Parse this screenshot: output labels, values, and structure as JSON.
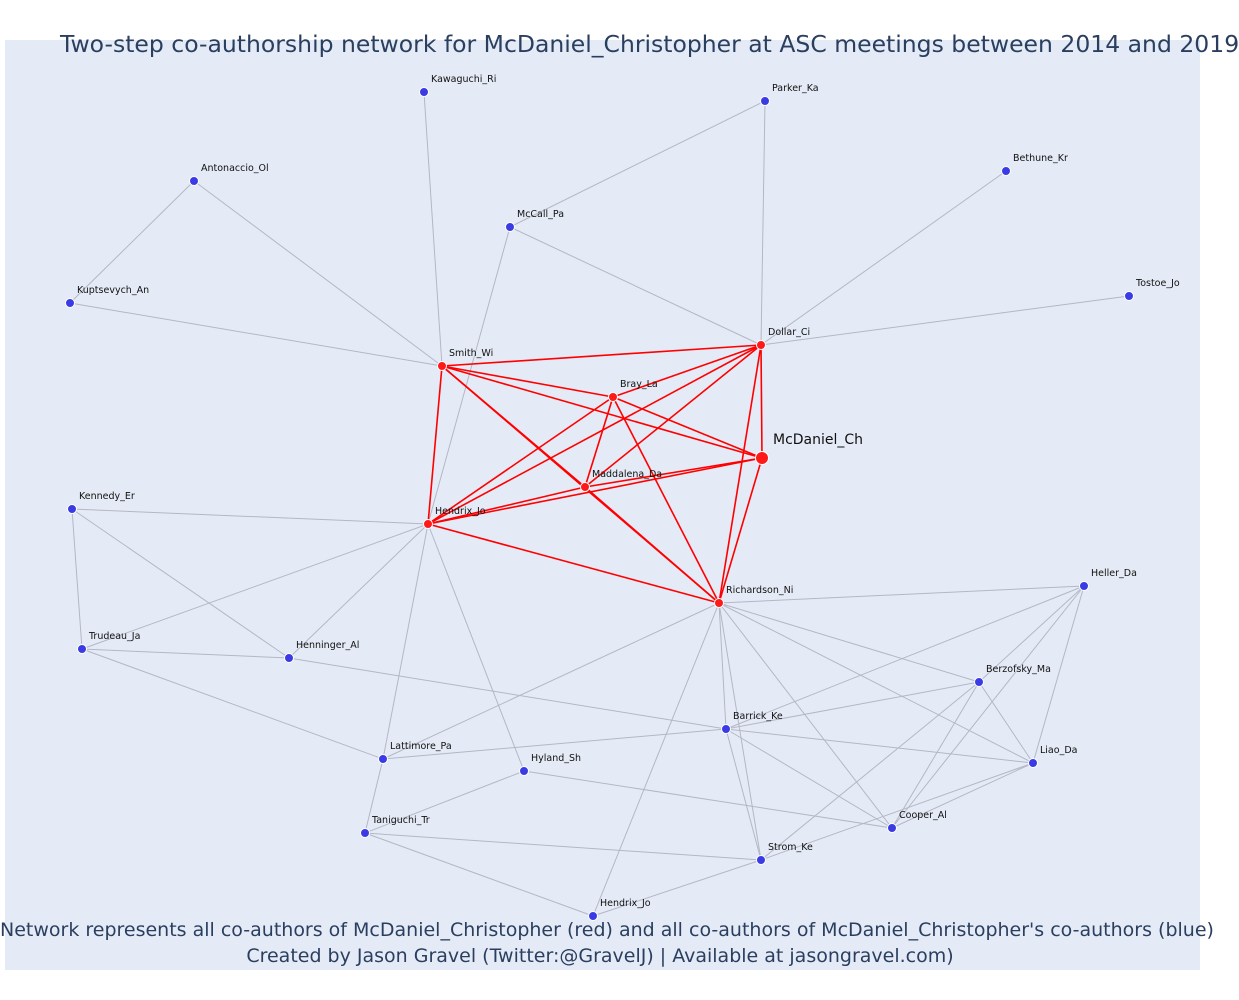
{
  "title": "Two-step co-authorship network for McDaniel_Christopher at ASC meetings between 2014 and 2019",
  "footer": {
    "line1": "Network represents all co-authors of McDaniel_Christopher (red) and all co-authors of McDaniel_Christopher's co-authors (blue)",
    "line2": "Created by Jason Gravel (Twitter:@GravelJ) | Available at jasongravel.com)"
  },
  "colors": {
    "background": "#e5ebf6",
    "coauthor": "#ff0000",
    "second_degree": "#3b3be6",
    "edge_gray": "#b4b7c6",
    "text": "#2a3f5f"
  },
  "nodes": [
    {
      "id": "mcdaniel",
      "label": "McDaniel_Ch",
      "group": "focus"
    },
    {
      "id": "smith",
      "label": "Smith_Wi",
      "group": "coauthor"
    },
    {
      "id": "dollar",
      "label": "Dollar_Ci",
      "group": "coauthor"
    },
    {
      "id": "bray",
      "label": "Bray_La",
      "group": "coauthor"
    },
    {
      "id": "maddalena",
      "label": "Maddalena_Da",
      "group": "coauthor"
    },
    {
      "id": "hendrixjo",
      "label": "Hendrix_Jo",
      "group": "coauthor"
    },
    {
      "id": "richardson",
      "label": "Richardson_Ni",
      "group": "coauthor"
    },
    {
      "id": "kawaguchi",
      "label": "Kawaguchi_Ri",
      "group": "second"
    },
    {
      "id": "parker",
      "label": "Parker_Ka",
      "group": "second"
    },
    {
      "id": "bethune",
      "label": "Bethune_Kr",
      "group": "second"
    },
    {
      "id": "antonaccio",
      "label": "Antonaccio_Ol",
      "group": "second"
    },
    {
      "id": "mccall",
      "label": "McCall_Pa",
      "group": "second"
    },
    {
      "id": "kuptsevych",
      "label": "Kuptsevych_An",
      "group": "second"
    },
    {
      "id": "tostoe",
      "label": "Tostoe_Jo",
      "group": "second"
    },
    {
      "id": "kennedy",
      "label": "Kennedy_Er",
      "group": "second"
    },
    {
      "id": "trudeau",
      "label": "Trudeau_Ja",
      "group": "second"
    },
    {
      "id": "henninger",
      "label": "Henninger_Al",
      "group": "second"
    },
    {
      "id": "heller",
      "label": "Heller_Da",
      "group": "second"
    },
    {
      "id": "berzofsky",
      "label": "Berzofsky_Ma",
      "group": "second"
    },
    {
      "id": "barrick",
      "label": "Barrick_Ke",
      "group": "second"
    },
    {
      "id": "lattimore",
      "label": "Lattimore_Pa",
      "group": "second"
    },
    {
      "id": "hyland",
      "label": "Hyland_Sh",
      "group": "second"
    },
    {
      "id": "liao",
      "label": "Liao_Da",
      "group": "second"
    },
    {
      "id": "taniguchi",
      "label": "Taniguchi_Tr",
      "group": "second"
    },
    {
      "id": "cooper",
      "label": "Cooper_Al",
      "group": "second"
    },
    {
      "id": "strom",
      "label": "Strom_Ke",
      "group": "second"
    },
    {
      "id": "hendrixjo2",
      "label": "Hendrix_Jo",
      "group": "second"
    }
  ],
  "edges": [
    [
      "mcdaniel",
      "smith"
    ],
    [
      "mcdaniel",
      "dollar"
    ],
    [
      "mcdaniel",
      "bray"
    ],
    [
      "mcdaniel",
      "maddalena"
    ],
    [
      "mcdaniel",
      "hendrixjo"
    ],
    [
      "mcdaniel",
      "richardson"
    ],
    [
      "smith",
      "dollar"
    ],
    [
      "smith",
      "bray"
    ],
    [
      "smith",
      "maddalena"
    ],
    [
      "smith",
      "hendrixjo"
    ],
    [
      "smith",
      "richardson"
    ],
    [
      "dollar",
      "bray"
    ],
    [
      "dollar",
      "maddalena"
    ],
    [
      "dollar",
      "hendrixjo"
    ],
    [
      "dollar",
      "richardson"
    ],
    [
      "bray",
      "maddalena"
    ],
    [
      "bray",
      "hendrixjo"
    ],
    [
      "bray",
      "richardson"
    ],
    [
      "maddalena",
      "hendrixjo"
    ],
    [
      "maddalena",
      "richardson"
    ],
    [
      "hendrixjo",
      "richardson"
    ],
    [
      "smith",
      "kawaguchi"
    ],
    [
      "smith",
      "antonaccio"
    ],
    [
      "smith",
      "kuptsevych"
    ],
    [
      "antonaccio",
      "kuptsevych"
    ],
    [
      "dollar",
      "parker"
    ],
    [
      "dollar",
      "bethune"
    ],
    [
      "dollar",
      "mccall"
    ],
    [
      "dollar",
      "tostoe"
    ],
    [
      "mccall",
      "parker"
    ],
    [
      "mccall",
      "hendrixjo"
    ],
    [
      "hendrixjo",
      "kennedy"
    ],
    [
      "hendrixjo",
      "trudeau"
    ],
    [
      "hendrixjo",
      "henninger"
    ],
    [
      "hendrixjo",
      "lattimore"
    ],
    [
      "hendrixjo",
      "hyland"
    ],
    [
      "kennedy",
      "trudeau"
    ],
    [
      "kennedy",
      "henninger"
    ],
    [
      "trudeau",
      "henninger"
    ],
    [
      "trudeau",
      "lattimore"
    ],
    [
      "henninger",
      "barrick"
    ],
    [
      "richardson",
      "heller"
    ],
    [
      "richardson",
      "berzofsky"
    ],
    [
      "richardson",
      "barrick"
    ],
    [
      "richardson",
      "lattimore"
    ],
    [
      "richardson",
      "liao"
    ],
    [
      "richardson",
      "cooper"
    ],
    [
      "richardson",
      "strom"
    ],
    [
      "richardson",
      "hendrixjo2"
    ],
    [
      "heller",
      "berzofsky"
    ],
    [
      "heller",
      "barrick"
    ],
    [
      "heller",
      "liao"
    ],
    [
      "heller",
      "cooper"
    ],
    [
      "berzofsky",
      "barrick"
    ],
    [
      "berzofsky",
      "liao"
    ],
    [
      "berzofsky",
      "cooper"
    ],
    [
      "berzofsky",
      "strom"
    ],
    [
      "barrick",
      "lattimore"
    ],
    [
      "barrick",
      "liao"
    ],
    [
      "barrick",
      "cooper"
    ],
    [
      "barrick",
      "strom"
    ],
    [
      "liao",
      "cooper"
    ],
    [
      "liao",
      "strom"
    ],
    [
      "hyland",
      "taniguchi"
    ],
    [
      "hyland",
      "cooper"
    ],
    [
      "lattimore",
      "taniguchi"
    ],
    [
      "taniguchi",
      "strom"
    ],
    [
      "taniguchi",
      "hendrixjo2"
    ],
    [
      "strom",
      "hendrixjo2"
    ]
  ]
}
